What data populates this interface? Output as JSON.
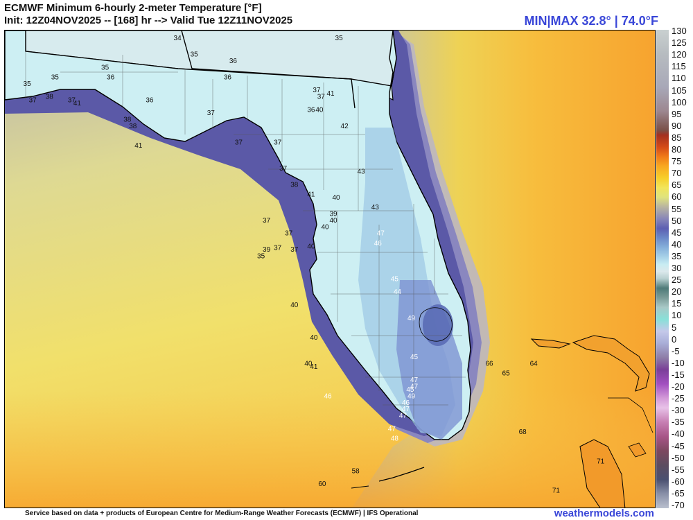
{
  "header": {
    "title": "ECMWF Minimum 6-hourly 2-meter Temperature [°F]",
    "subtitle": "Init: 12Z04NOV2025 -- [168] hr --> Valid Tue 12Z11NOV2025",
    "minmax": "MIN|MAX 32.8° | 74.0°F"
  },
  "colorbar": {
    "ticks": [
      "130",
      "125",
      "120",
      "115",
      "110",
      "105",
      "100",
      "95",
      "90",
      "85",
      "80",
      "75",
      "70",
      "65",
      "60",
      "55",
      "50",
      "45",
      "40",
      "35",
      "30",
      "25",
      "20",
      "15",
      "10",
      "5",
      "0",
      "-5",
      "-10",
      "-15",
      "-20",
      "-25",
      "-30",
      "-35",
      "-40",
      "-45",
      "-50",
      "-55",
      "-60",
      "-65",
      "-70"
    ],
    "units": "°F"
  },
  "colors": {
    "land": "#d2f0f2",
    "cold_coast": "#7a85c7",
    "deep_cold": "#5a59a8",
    "warm_gulf": "#e6e07c",
    "warm_atlantic": "#f7b93a",
    "hot": "#f79a2a",
    "accent": "#3a47d8"
  },
  "station_labels": [
    {
      "text": "34",
      "lat": 31.2,
      "lon": -84.3
    },
    {
      "text": "35",
      "lat": 31.2,
      "lon": -81.4
    },
    {
      "text": "35",
      "lat": 30.75,
      "lon": -85.6
    },
    {
      "text": "35",
      "lat": 30.95,
      "lon": -84.0
    },
    {
      "text": "36",
      "lat": 30.85,
      "lon": -83.3
    },
    {
      "text": "36",
      "lat": 30.6,
      "lon": -83.4
    },
    {
      "text": "35",
      "lat": 30.5,
      "lon": -87.0
    },
    {
      "text": "35",
      "lat": 30.6,
      "lon": -86.5
    },
    {
      "text": "36",
      "lat": 30.6,
      "lon": -85.5
    },
    {
      "text": "37",
      "lat": 30.25,
      "lon": -86.9
    },
    {
      "text": "38",
      "lat": 30.3,
      "lon": -86.6
    },
    {
      "text": "37",
      "lat": 30.25,
      "lon": -86.2
    },
    {
      "text": "41",
      "lat": 30.2,
      "lon": -86.1
    },
    {
      "text": "36",
      "lat": 30.25,
      "lon": -84.8
    },
    {
      "text": "38",
      "lat": 29.95,
      "lon": -85.2
    },
    {
      "text": "38",
      "lat": 29.85,
      "lon": -85.1
    },
    {
      "text": "41",
      "lat": 29.55,
      "lon": -85.0
    },
    {
      "text": "37",
      "lat": 30.05,
      "lon": -83.7
    },
    {
      "text": "37",
      "lat": 29.6,
      "lon": -83.2
    },
    {
      "text": "37",
      "lat": 29.6,
      "lon": -82.5
    },
    {
      "text": "37",
      "lat": 30.4,
      "lon": -81.8
    },
    {
      "text": "41",
      "lat": 30.35,
      "lon": -81.55
    },
    {
      "text": "37",
      "lat": 30.3,
      "lon": -81.72
    },
    {
      "text": "36",
      "lat": 30.1,
      "lon": -81.9
    },
    {
      "text": "40",
      "lat": 30.1,
      "lon": -81.75
    },
    {
      "text": "42",
      "lat": 29.85,
      "lon": -81.3
    },
    {
      "text": "37",
      "lat": 29.2,
      "lon": -82.4
    },
    {
      "text": "38",
      "lat": 28.95,
      "lon": -82.2
    },
    {
      "text": "41",
      "lat": 28.8,
      "lon": -81.9
    },
    {
      "text": "40",
      "lat": 28.75,
      "lon": -81.45
    },
    {
      "text": "43",
      "lat": 29.15,
      "lon": -81.0
    },
    {
      "text": "43",
      "lat": 28.6,
      "lon": -80.75
    },
    {
      "text": "39",
      "lat": 28.5,
      "lon": -81.5
    },
    {
      "text": "40",
      "lat": 28.4,
      "lon": -81.5
    },
    {
      "text": "40",
      "lat": 28.3,
      "lon": -81.65
    },
    {
      "text": "37",
      "lat": 28.4,
      "lon": -82.7
    },
    {
      "text": "37",
      "lat": 28.2,
      "lon": -82.3
    },
    {
      "text": "40",
      "lat": 28.0,
      "lon": -81.9
    },
    {
      "text": "39",
      "lat": 27.95,
      "lon": -82.7
    },
    {
      "text": "37",
      "lat": 27.98,
      "lon": -82.5
    },
    {
      "text": "37",
      "lat": 27.95,
      "lon": -82.2
    },
    {
      "text": "35",
      "lat": 27.85,
      "lon": -82.8
    },
    {
      "text": "47",
      "lat": 28.2,
      "lon": -80.65
    },
    {
      "text": "46",
      "lat": 28.05,
      "lon": -80.7
    },
    {
      "text": "45",
      "lat": 27.5,
      "lon": -80.4
    },
    {
      "text": "44",
      "lat": 27.3,
      "lon": -80.35
    },
    {
      "text": "40",
      "lat": 27.1,
      "lon": -82.2
    },
    {
      "text": "49",
      "lat": 26.9,
      "lon": -80.1
    },
    {
      "text": "40",
      "lat": 26.6,
      "lon": -81.85
    },
    {
      "text": "45",
      "lat": 26.3,
      "lon": -80.05
    },
    {
      "text": "40",
      "lat": 26.2,
      "lon": -81.95
    },
    {
      "text": "41",
      "lat": 26.15,
      "lon": -81.85
    },
    {
      "text": "47",
      "lat": 25.95,
      "lon": -80.05
    },
    {
      "text": "47",
      "lat": 25.85,
      "lon": -80.05
    },
    {
      "text": "45",
      "lat": 25.8,
      "lon": -80.12
    },
    {
      "text": "49",
      "lat": 25.7,
      "lon": -80.1
    },
    {
      "text": "46",
      "lat": 25.6,
      "lon": -80.2
    },
    {
      "text": "47",
      "lat": 25.5,
      "lon": -80.2
    },
    {
      "text": "47",
      "lat": 25.4,
      "lon": -80.25
    },
    {
      "text": "46",
      "lat": 25.7,
      "lon": -81.6
    },
    {
      "text": "47",
      "lat": 25.2,
      "lon": -80.45
    },
    {
      "text": "48",
      "lat": 25.05,
      "lon": -80.4
    },
    {
      "text": "58",
      "lat": 24.55,
      "lon": -81.1
    },
    {
      "text": "60",
      "lat": 24.35,
      "lon": -81.7
    },
    {
      "text": "66",
      "lat": 26.2,
      "lon": -78.7
    },
    {
      "text": "65",
      "lat": 26.05,
      "lon": -78.4
    },
    {
      "text": "64",
      "lat": 26.2,
      "lon": -77.9
    },
    {
      "text": "68",
      "lat": 25.15,
      "lon": -78.1
    },
    {
      "text": "71",
      "lat": 24.7,
      "lon": -76.7
    },
    {
      "text": "71",
      "lat": 24.25,
      "lon": -77.5
    }
  ],
  "footer": {
    "credit": "Service based on data + products of European Centre for Medium-Range Weather Forecasts (ECMWF) | IFS Operational",
    "site": "weathermodels.com"
  }
}
